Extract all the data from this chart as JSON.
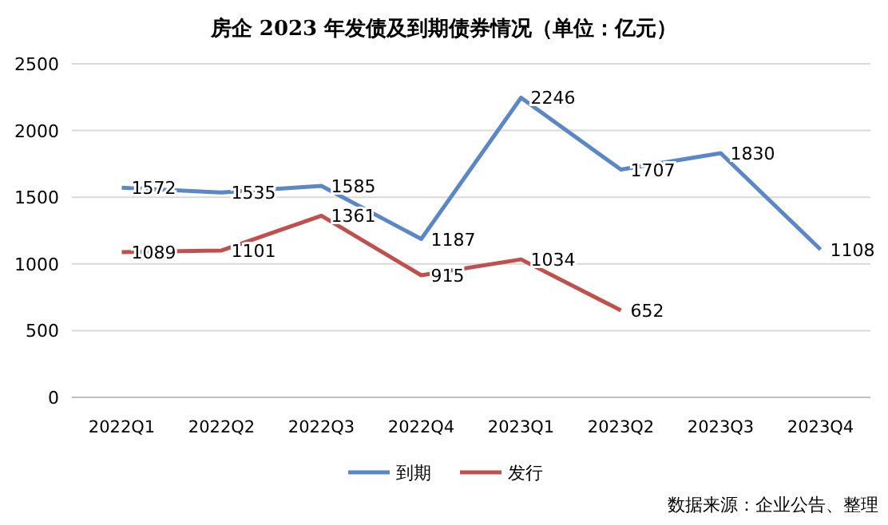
{
  "chart_data": {
    "type": "line",
    "title": "房企 2023 年发债及到期债券情况（单位：亿元）",
    "categories": [
      "2022Q1",
      "2022Q2",
      "2022Q3",
      "2022Q4",
      "2023Q1",
      "2023Q2",
      "2023Q3",
      "2023Q4"
    ],
    "series": [
      {
        "name": "到期",
        "color": "#5b87c6",
        "values": [
          1572,
          1535,
          1585,
          1187,
          2246,
          1707,
          1830,
          1108
        ]
      },
      {
        "name": "发行",
        "color": "#c0504d",
        "values": [
          1089,
          1101,
          1361,
          915,
          1034,
          652,
          null,
          null
        ]
      }
    ],
    "ylim": [
      0,
      2500
    ],
    "yticks": [
      0,
      500,
      1000,
      1500,
      2000,
      2500
    ],
    "grid": "y",
    "legend": "bottom",
    "data_labels": true,
    "marker": "none",
    "line_style": "solid",
    "annotations": [
      "数据来源：企业公告、整理"
    ]
  }
}
